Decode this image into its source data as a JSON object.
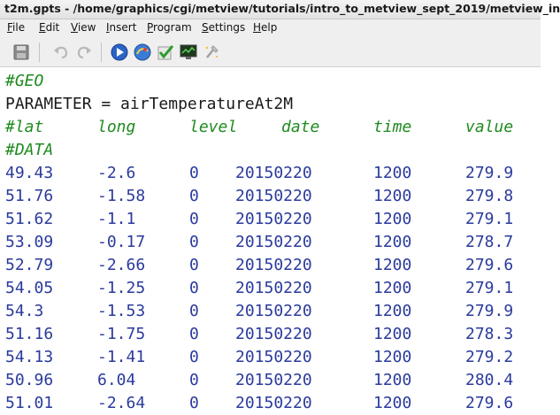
{
  "window": {
    "title": "t2m.gpts - /home/graphics/cgi/metview/tutorials/intro_to_metview_sept_2019/metview_in"
  },
  "menu": [
    {
      "pre": "",
      "acc": "F",
      "post": "ile"
    },
    {
      "pre": "",
      "acc": "E",
      "post": "dit"
    },
    {
      "pre": "",
      "acc": "V",
      "post": "iew"
    },
    {
      "pre": "",
      "acc": "I",
      "post": "nsert"
    },
    {
      "pre": "",
      "acc": "P",
      "post": "rogram"
    },
    {
      "pre": "",
      "acc": "S",
      "post": "ettings"
    },
    {
      "pre": "",
      "acc": "H",
      "post": "elp"
    }
  ],
  "toolbar": {
    "buttons": [
      "save-icon",
      "undo-icon",
      "redo-icon",
      "run-icon",
      "visualise-icon",
      "check-icon",
      "monitor-icon",
      "tools-icon"
    ]
  },
  "colors": {
    "comment": "#1f8a1f",
    "number": "#2a3a9c",
    "text": "#1a1a1a"
  },
  "editor": {
    "geo_line": "#GEO",
    "parameter_line": "PARAMETER = airTemperatureAt2M",
    "header": {
      "lat": "#lat",
      "long": "long",
      "level": "level",
      "date": "date",
      "time": "time",
      "value": "value"
    },
    "data_line": "#DATA",
    "rows": [
      {
        "lat": "49.43",
        "long": "-2.6",
        "level": "0",
        "date": "20150220",
        "time": "1200",
        "value": "279.9"
      },
      {
        "lat": "51.76",
        "long": "-1.58",
        "level": "0",
        "date": "20150220",
        "time": "1200",
        "value": "279.8"
      },
      {
        "lat": "51.62",
        "long": "-1.1",
        "level": "0",
        "date": "20150220",
        "time": "1200",
        "value": "279.1"
      },
      {
        "lat": "53.09",
        "long": "-0.17",
        "level": "0",
        "date": "20150220",
        "time": "1200",
        "value": "278.7"
      },
      {
        "lat": "52.79",
        "long": "-2.66",
        "level": "0",
        "date": "20150220",
        "time": "1200",
        "value": "279.6"
      },
      {
        "lat": "54.05",
        "long": "-1.25",
        "level": "0",
        "date": "20150220",
        "time": "1200",
        "value": "279.1"
      },
      {
        "lat": "54.3",
        "long": "-1.53",
        "level": "0",
        "date": "20150220",
        "time": "1200",
        "value": "279.9"
      },
      {
        "lat": "51.16",
        "long": "-1.75",
        "level": "0",
        "date": "20150220",
        "time": "1200",
        "value": "278.3"
      },
      {
        "lat": "54.13",
        "long": "-1.41",
        "level": "0",
        "date": "20150220",
        "time": "1200",
        "value": "279.2"
      },
      {
        "lat": "50.96",
        "long": "6.04",
        "level": "0",
        "date": "20150220",
        "time": "1200",
        "value": "280.4"
      },
      {
        "lat": "51.01",
        "long": "-2.64",
        "level": "0",
        "date": "20150220",
        "time": "1200",
        "value": "279.6"
      }
    ]
  }
}
